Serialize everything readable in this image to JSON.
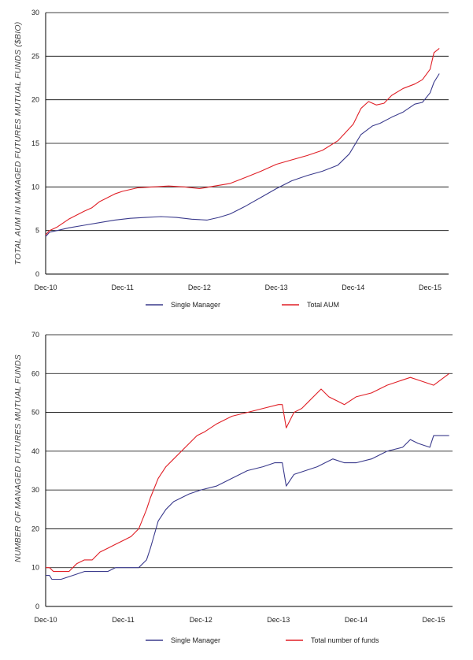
{
  "colors": {
    "single_manager": "#3a3a8c",
    "total": "#e01f26",
    "grid": "#000000",
    "axis": "#000000"
  },
  "chart_data": [
    {
      "type": "line",
      "title": "",
      "xlabel": "",
      "ylabel": "TOTAL AUM IN MANAGED FUTURES MUTUAL FUNDS ($BIO)",
      "ylim": [
        0,
        30
      ],
      "y_ticks": [
        "0",
        "5",
        "10",
        "15",
        "20",
        "25",
        "30"
      ],
      "x_ticks": [
        "Dec-10",
        "Dec-11",
        "Dec-12",
        "Dec-13",
        "Dec-14",
        "Dec-15"
      ],
      "xlim": [
        0,
        5.15
      ],
      "grid": true,
      "legend": "bottom",
      "series": [
        {
          "name": "Single Manager",
          "color": "#3a3a8c",
          "x": [
            0,
            0.05,
            0.15,
            0.3,
            0.5,
            0.7,
            0.9,
            1.1,
            1.3,
            1.5,
            1.7,
            1.9,
            2.1,
            2.25,
            2.4,
            2.6,
            2.8,
            3.0,
            3.2,
            3.4,
            3.6,
            3.8,
            3.95,
            4.1,
            4.25,
            4.35,
            4.5,
            4.65,
            4.8,
            4.9,
            5.0,
            5.05,
            5.12
          ],
          "values": [
            4.3,
            4.8,
            5.0,
            5.3,
            5.6,
            5.9,
            6.2,
            6.4,
            6.5,
            6.6,
            6.5,
            6.3,
            6.2,
            6.5,
            6.9,
            7.8,
            8.8,
            9.8,
            10.7,
            11.3,
            11.8,
            12.5,
            13.8,
            16.0,
            17.0,
            17.3,
            18.0,
            18.6,
            19.5,
            19.7,
            20.8,
            22.0,
            23.0
          ]
        },
        {
          "name": "Total AUM",
          "color": "#e01f26",
          "x": [
            0,
            0.05,
            0.15,
            0.3,
            0.5,
            0.6,
            0.7,
            0.9,
            1.0,
            1.2,
            1.4,
            1.6,
            1.8,
            2.0,
            2.2,
            2.4,
            2.6,
            2.8,
            3.0,
            3.2,
            3.4,
            3.6,
            3.8,
            4.0,
            4.1,
            4.2,
            4.3,
            4.4,
            4.5,
            4.65,
            4.8,
            4.9,
            5.0,
            5.05,
            5.12
          ],
          "values": [
            4.5,
            5.0,
            5.4,
            6.3,
            7.2,
            7.6,
            8.3,
            9.2,
            9.5,
            9.9,
            10.0,
            10.1,
            10.0,
            9.8,
            10.1,
            10.4,
            11.1,
            11.8,
            12.6,
            13.1,
            13.6,
            14.2,
            15.3,
            17.2,
            19.0,
            19.8,
            19.4,
            19.6,
            20.5,
            21.3,
            21.8,
            22.3,
            23.5,
            25.4,
            25.9
          ]
        }
      ]
    },
    {
      "type": "line",
      "title": "",
      "xlabel": "",
      "ylabel": "NUMBER OF MANAGED FUTURES MUTUAL FUNDS",
      "ylim": [
        0,
        70
      ],
      "y_ticks": [
        "0",
        "10",
        "20",
        "30",
        "40",
        "50",
        "60",
        "70"
      ],
      "x_ticks": [
        "Dec-10",
        "Dec-11",
        "Dec-12",
        "Dec-13",
        "Dec-14",
        "Dec-15"
      ],
      "xlim": [
        0,
        5.2
      ],
      "grid": true,
      "legend": "bottom",
      "series": [
        {
          "name": "Single Manager",
          "color": "#3a3a8c",
          "x": [
            0,
            0.05,
            0.08,
            0.2,
            0.35,
            0.5,
            0.65,
            0.8,
            0.9,
            1.0,
            1.1,
            1.2,
            1.3,
            1.35,
            1.45,
            1.55,
            1.65,
            1.75,
            1.85,
            2.0,
            2.2,
            2.4,
            2.6,
            2.8,
            2.95,
            3.05,
            3.1,
            3.2,
            3.35,
            3.5,
            3.6,
            3.7,
            3.85,
            4.0,
            4.2,
            4.4,
            4.6,
            4.7,
            4.8,
            4.95,
            5.0,
            5.2
          ],
          "values": [
            8,
            8,
            7,
            7,
            8,
            9,
            9,
            9,
            10,
            10,
            10,
            10,
            12,
            15,
            22,
            25,
            27,
            28,
            29,
            30,
            31,
            33,
            35,
            36,
            37,
            37,
            31,
            34,
            35,
            36,
            37,
            38,
            37,
            37,
            38,
            40,
            41,
            43,
            42,
            41,
            44,
            44
          ]
        },
        {
          "name": "Total number of funds",
          "color": "#e01f26",
          "x": [
            0,
            0.05,
            0.1,
            0.3,
            0.4,
            0.5,
            0.6,
            0.7,
            0.8,
            0.9,
            1.0,
            1.1,
            1.2,
            1.3,
            1.35,
            1.45,
            1.55,
            1.65,
            1.75,
            1.85,
            1.95,
            2.05,
            2.2,
            2.4,
            2.6,
            2.8,
            3.0,
            3.05,
            3.1,
            3.2,
            3.3,
            3.4,
            3.55,
            3.65,
            3.75,
            3.85,
            4.0,
            4.2,
            4.4,
            4.55,
            4.7,
            4.85,
            5.0,
            5.2
          ],
          "values": [
            10,
            10,
            9,
            9,
            11,
            12,
            12,
            14,
            15,
            16,
            17,
            18,
            20,
            25,
            28,
            33,
            36,
            38,
            40,
            42,
            44,
            45,
            47,
            49,
            50,
            51,
            52,
            52,
            46,
            50,
            51,
            53,
            56,
            54,
            53,
            52,
            54,
            55,
            57,
            58,
            59,
            58,
            57,
            60
          ]
        }
      ]
    }
  ]
}
